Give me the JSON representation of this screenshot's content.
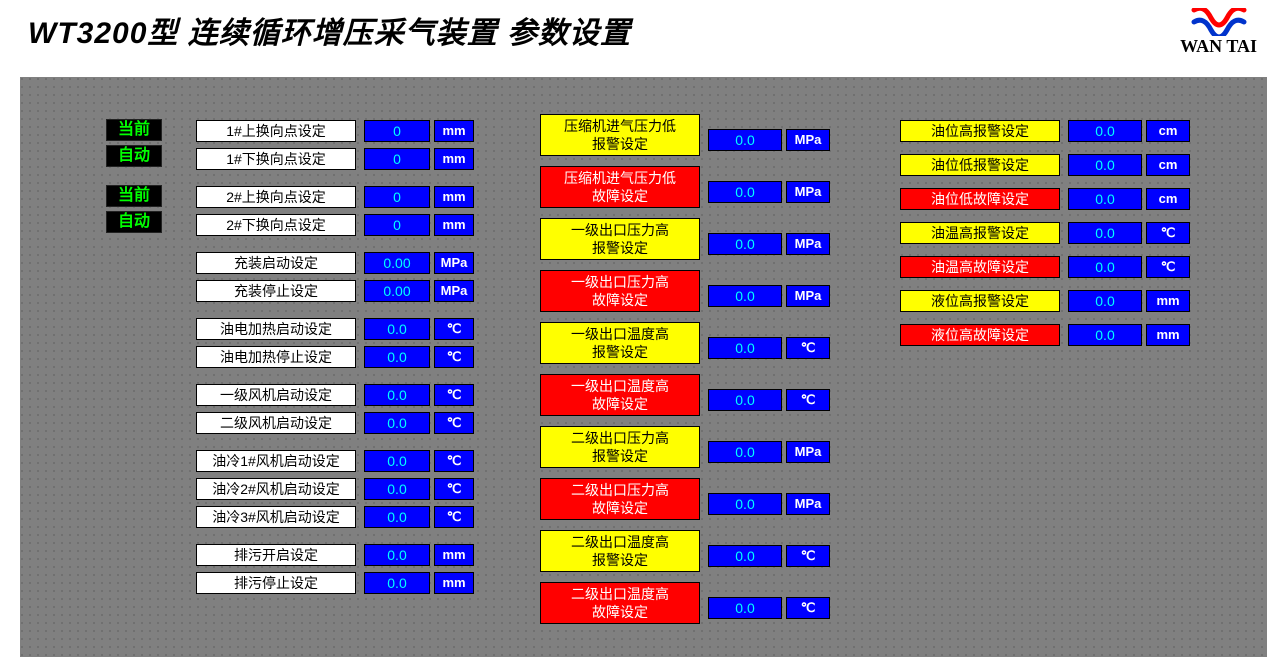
{
  "header": {
    "title": "WT3200型 连续循环增压采气装置 参数设置",
    "brand": "WAN TAI",
    "logo_colors": {
      "top": "#ff0000",
      "bottom": "#0033cc"
    }
  },
  "colors": {
    "panel_bg": "#808080",
    "dot": "#6a6a6a",
    "value_bg": "#0000ff",
    "value_fg": "#00ffff",
    "unit_fg": "#ffffff",
    "status_bg": "#000000",
    "status_fg": "#00ff00",
    "label_white": "#ffffff",
    "label_yellow": "#ffff00",
    "label_red": "#ff0000"
  },
  "status": {
    "s1": {
      "line1": "当前",
      "line2": "自动"
    },
    "s2": {
      "line1": "当前",
      "line2": "自动"
    }
  },
  "col1": {
    "g1": [
      {
        "label": "1#上换向点设定",
        "value": "0",
        "unit": "mm"
      },
      {
        "label": "1#下换向点设定",
        "value": "0",
        "unit": "mm"
      }
    ],
    "g2": [
      {
        "label": "2#上换向点设定",
        "value": "0",
        "unit": "mm"
      },
      {
        "label": "2#下换向点设定",
        "value": "0",
        "unit": "mm"
      }
    ],
    "g3": [
      {
        "label": "充装启动设定",
        "value": "0.00",
        "unit": "MPa"
      },
      {
        "label": "充装停止设定",
        "value": "0.00",
        "unit": "MPa"
      }
    ],
    "g4": [
      {
        "label": "油电加热启动设定",
        "value": "0.0",
        "unit": "℃"
      },
      {
        "label": "油电加热停止设定",
        "value": "0.0",
        "unit": "℃"
      }
    ],
    "g5": [
      {
        "label": "一级风机启动设定",
        "value": "0.0",
        "unit": "℃"
      },
      {
        "label": "二级风机启动设定",
        "value": "0.0",
        "unit": "℃"
      }
    ],
    "g6": [
      {
        "label": "油冷1#风机启动设定",
        "value": "0.0",
        "unit": "℃"
      },
      {
        "label": "油冷2#风机启动设定",
        "value": "0.0",
        "unit": "℃"
      },
      {
        "label": "油冷3#风机启动设定",
        "value": "0.0",
        "unit": "℃"
      }
    ],
    "g7": [
      {
        "label": "排污开启设定",
        "value": "0.0",
        "unit": "mm"
      },
      {
        "label": "排污停止设定",
        "value": "0.0",
        "unit": "mm"
      }
    ]
  },
  "col2": {
    "items": [
      {
        "label": "压缩机进气压力低\n报警设定",
        "style": "yellow",
        "value": "0.0",
        "unit": "MPa"
      },
      {
        "label": "压缩机进气压力低\n故障设定",
        "style": "red",
        "value": "0.0",
        "unit": "MPa"
      },
      {
        "label": "一级出口压力高\n报警设定",
        "style": "yellow",
        "value": "0.0",
        "unit": "MPa"
      },
      {
        "label": "一级出口压力高\n故障设定",
        "style": "red",
        "value": "0.0",
        "unit": "MPa"
      },
      {
        "label": "一级出口温度高\n报警设定",
        "style": "yellow",
        "value": "0.0",
        "unit": "℃"
      },
      {
        "label": "一级出口温度高\n故障设定",
        "style": "red",
        "value": "0.0",
        "unit": "℃"
      },
      {
        "label": "二级出口压力高\n报警设定",
        "style": "yellow",
        "value": "0.0",
        "unit": "MPa"
      },
      {
        "label": "二级出口压力高\n故障设定",
        "style": "red",
        "value": "0.0",
        "unit": "MPa"
      },
      {
        "label": "二级出口温度高\n报警设定",
        "style": "yellow",
        "value": "0.0",
        "unit": "℃"
      },
      {
        "label": "二级出口温度高\n故障设定",
        "style": "red",
        "value": "0.0",
        "unit": "℃"
      }
    ]
  },
  "col3": {
    "items": [
      {
        "label": "油位高报警设定",
        "style": "yellow",
        "value": "0.0",
        "unit": "cm"
      },
      {
        "label": "油位低报警设定",
        "style": "yellow",
        "value": "0.0",
        "unit": "cm"
      },
      {
        "label": "油位低故障设定",
        "style": "red",
        "value": "0.0",
        "unit": "cm"
      },
      {
        "label": "油温高报警设定",
        "style": "yellow",
        "value": "0.0",
        "unit": "℃"
      },
      {
        "label": "油温高故障设定",
        "style": "red",
        "value": "0.0",
        "unit": "℃"
      },
      {
        "label": "液位高报警设定",
        "style": "yellow",
        "value": "0.0",
        "unit": "mm"
      },
      {
        "label": "液位高故障设定",
        "style": "red",
        "value": "0.0",
        "unit": "mm"
      }
    ]
  }
}
